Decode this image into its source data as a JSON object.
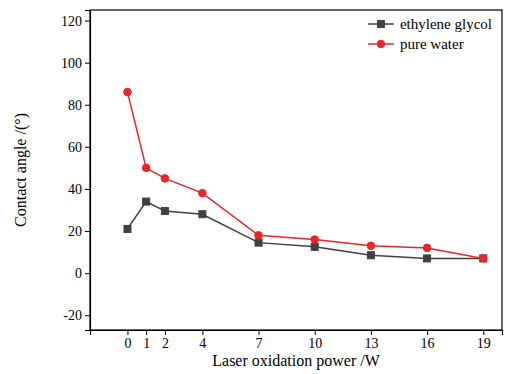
{
  "chart_data": {
    "type": "line",
    "x_label": "Laser oxidation power /W",
    "y_label": "Contact angle /(°)",
    "x": [
      0,
      1,
      2,
      4,
      7,
      10,
      13,
      16,
      19
    ],
    "series": [
      {
        "name": "ethylene glycol",
        "color": "#404040",
        "marker": "square",
        "values": [
          21,
          34,
          29.5,
          28,
          14.5,
          12.5,
          8.5,
          7,
          7
        ]
      },
      {
        "name": "pure water",
        "color": "#e8272a",
        "marker": "circle",
        "values": [
          86,
          50,
          45,
          38,
          18,
          16,
          13,
          12,
          7
        ]
      }
    ],
    "xlim": [
      -2,
      20
    ],
    "xticks": [
      0,
      1,
      2,
      4,
      7,
      10,
      13,
      16,
      19
    ],
    "ylim": [
      -27,
      125
    ],
    "yticks": [
      -20,
      0,
      20,
      40,
      60,
      80,
      100,
      120
    ],
    "legend": "upper right",
    "grid": false
  }
}
